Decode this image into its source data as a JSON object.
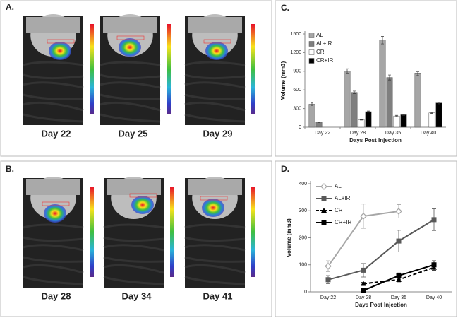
{
  "panels": [
    {
      "label": "A.",
      "days": [
        "Day 22",
        "Day 25",
        "Day 29"
      ]
    },
    {
      "label": "B.",
      "days": [
        "Day 28",
        "Day 34",
        "Day 41"
      ]
    }
  ],
  "chart_data": [
    {
      "type": "bar",
      "panel_label": "C.",
      "x_label": "Days Post Injection",
      "y_label": "Volume (mm3)",
      "categories": [
        "Day 22",
        "Day 28",
        "Day 35",
        "Day 40"
      ],
      "ylim": [
        0,
        1500
      ],
      "yticks": [
        0,
        300,
        600,
        900,
        1200,
        1500
      ],
      "legend": "top-left",
      "series": [
        {
          "name": "AL",
          "color": "#a6a6a6",
          "values": [
            370,
            900,
            1400,
            860
          ],
          "errors": [
            20,
            40,
            60,
            30
          ]
        },
        {
          "name": "AL+IR",
          "color": "#7f7f7f",
          "values": [
            80,
            560,
            800,
            null
          ],
          "errors": [
            5,
            20,
            40,
            null
          ]
        },
        {
          "name": "CR",
          "color": "#ffffff",
          "values": [
            null,
            120,
            180,
            230
          ],
          "errors": [
            null,
            5,
            10,
            10
          ]
        },
        {
          "name": "CR+IR",
          "color": "#000000",
          "values": [
            null,
            250,
            200,
            390
          ],
          "errors": [
            null,
            10,
            10,
            15
          ]
        }
      ]
    },
    {
      "type": "line",
      "panel_label": "D.",
      "x_label": "Days Post Injection",
      "y_label": "Volume (mm3)",
      "categories": [
        "Day 22",
        "Day 28",
        "Day 35",
        "Day 40"
      ],
      "ylim": [
        0,
        400
      ],
      "yticks": [
        0,
        100,
        200,
        300,
        400
      ],
      "legend": "top-left",
      "series": [
        {
          "name": "AL",
          "color": "#a6a6a6",
          "marker": "diamond",
          "dashed": false,
          "values": [
            95,
            280,
            298,
            null
          ],
          "errors": [
            20,
            45,
            25,
            null
          ]
        },
        {
          "name": "AL+IR",
          "color": "#595959",
          "marker": "square",
          "dashed": false,
          "values": [
            45,
            80,
            188,
            267
          ],
          "errors": [
            15,
            25,
            40,
            40
          ]
        },
        {
          "name": "CR",
          "color": "#000000",
          "marker": "triangle",
          "dashed": true,
          "values": [
            null,
            30,
            45,
            90
          ],
          "errors": [
            null,
            5,
            8,
            10
          ]
        },
        {
          "name": "CR+IR",
          "color": "#000000",
          "marker": "square",
          "dashed": false,
          "values": [
            null,
            5,
            60,
            100
          ],
          "errors": [
            null,
            3,
            10,
            15
          ]
        }
      ]
    }
  ]
}
